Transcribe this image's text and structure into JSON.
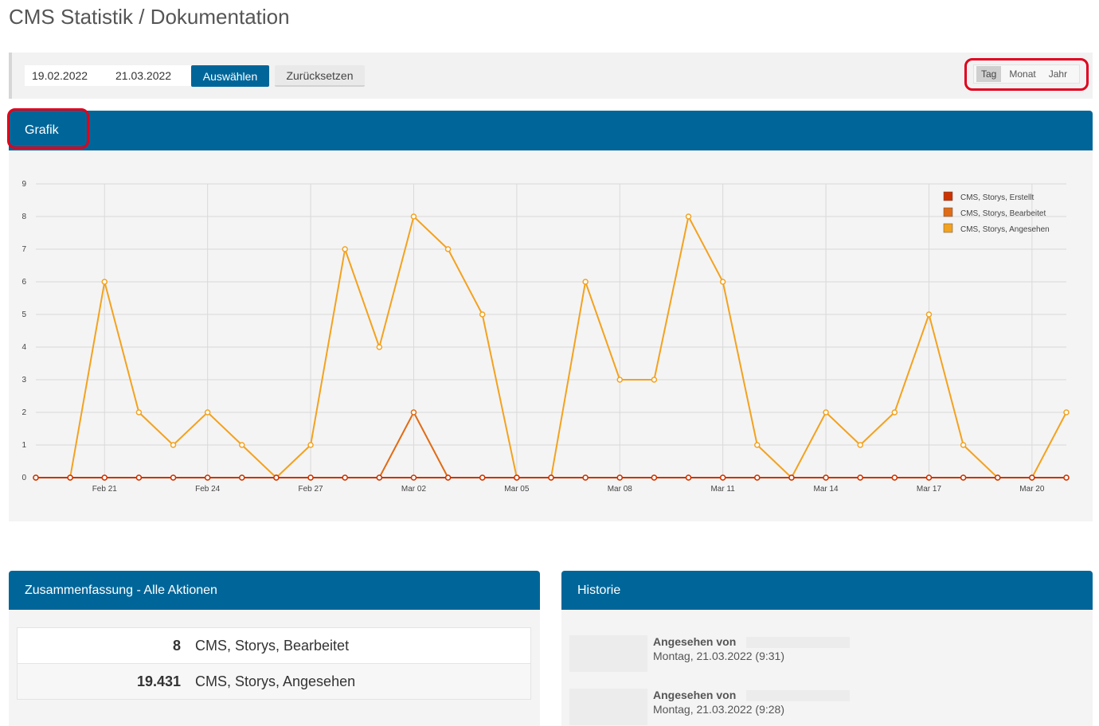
{
  "page": {
    "title": "CMS Statistik / Dokumentation"
  },
  "filter": {
    "date_from": "19.02.2022",
    "date_to": "21.03.2022",
    "select_label": "Auswählen",
    "reset_label": "Zurücksetzen",
    "periods": [
      "Tag",
      "Monat",
      "Jahr"
    ],
    "active_period": "Tag"
  },
  "graph_panel": {
    "title": "Grafik"
  },
  "chart_data": {
    "type": "line",
    "x": [
      "Feb 19",
      "Feb 20",
      "Feb 21",
      "Feb 22",
      "Feb 23",
      "Feb 24",
      "Feb 25",
      "Feb 26",
      "Feb 27",
      "Feb 28",
      "Mar 01",
      "Mar 02",
      "Mar 03",
      "Mar 04",
      "Mar 05",
      "Mar 06",
      "Mar 07",
      "Mar 08",
      "Mar 09",
      "Mar 10",
      "Mar 11",
      "Mar 12",
      "Mar 13",
      "Mar 14",
      "Mar 15",
      "Mar 16",
      "Mar 17",
      "Mar 18",
      "Mar 19",
      "Mar 20",
      "Mar 21"
    ],
    "xticks": [
      "Feb 21",
      "Feb 24",
      "Feb 27",
      "Mar 02",
      "Mar 05",
      "Mar 08",
      "Mar 11",
      "Mar 14",
      "Mar 17",
      "Mar 20"
    ],
    "ylim": [
      0,
      9
    ],
    "yticks": [
      0,
      1,
      2,
      3,
      4,
      5,
      6,
      7,
      8,
      9
    ],
    "grid": true,
    "legend_position": "top-right",
    "series": [
      {
        "name": "CMS, Storys, Erstellt",
        "color": "#cc3300",
        "values": [
          0,
          0,
          0,
          0,
          0,
          0,
          0,
          0,
          0,
          0,
          0,
          0,
          0,
          0,
          0,
          0,
          0,
          0,
          0,
          0,
          0,
          0,
          0,
          0,
          0,
          0,
          0,
          0,
          0,
          0,
          0
        ]
      },
      {
        "name": "CMS, Storys, Bearbeitet",
        "color": "#e06c16",
        "values": [
          0,
          0,
          0,
          0,
          0,
          0,
          0,
          0,
          0,
          0,
          0,
          2,
          0,
          0,
          0,
          0,
          0,
          0,
          0,
          0,
          0,
          0,
          0,
          0,
          0,
          0,
          0,
          0,
          0,
          0,
          0
        ]
      },
      {
        "name": "CMS, Storys, Angesehen",
        "color": "#f3a21f",
        "values": [
          0,
          0,
          6,
          2,
          1,
          2,
          1,
          0,
          1,
          7,
          4,
          8,
          7,
          5,
          0,
          0,
          6,
          3,
          3,
          8,
          6,
          1,
          0,
          2,
          1,
          2,
          5,
          1,
          0,
          0,
          2
        ]
      }
    ]
  },
  "summary": {
    "title": "Zusammenfassung - Alle Aktionen",
    "rows": [
      {
        "count": "8",
        "label": "CMS, Storys, Bearbeitet"
      },
      {
        "count": "19.431",
        "label": "CMS, Storys, Angesehen"
      }
    ]
  },
  "history": {
    "title": "Historie",
    "items": [
      {
        "action": "Angesehen von",
        "date": "Montag, 21.03.2022 (9:31)"
      },
      {
        "action": "Angesehen von",
        "date": "Montag, 21.03.2022 (9:28)"
      }
    ]
  },
  "annotation_color": "#e0001b"
}
